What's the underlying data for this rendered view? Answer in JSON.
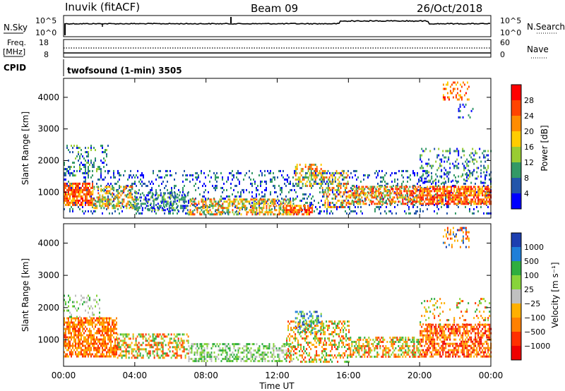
{
  "header": {
    "station": "Inuvik (fitACF)",
    "beam": "Beam 09",
    "date": "26/Oct/2018"
  },
  "top_panel": {
    "left_label": "N.Sky",
    "right_label": "N.Search",
    "left_ticks": [
      "10^5",
      "10^0"
    ],
    "right_ticks": [
      "10^5",
      "10^0"
    ]
  },
  "freq_panel": {
    "left_label_1": "Freq.",
    "left_label_2": "[MHz]",
    "right_label": "Nave",
    "left_ticks": [
      "18",
      "8"
    ],
    "right_ticks": [
      "60",
      "0"
    ],
    "cpid_label": "CPID",
    "cpid_text": "twofsound (1-min) 3505"
  },
  "chart_data": [
    {
      "type": "heatmap",
      "name": "power",
      "ylabel": "Slant Range [km]",
      "yticks": [
        1000,
        2000,
        3000,
        4000
      ],
      "ylim": [
        180,
        4600
      ],
      "xlim_hours": [
        0,
        24
      ],
      "colorbar_label": "Power [dB]",
      "colorbar_ticks": [
        "28",
        "24",
        "20",
        "16",
        "12",
        "8",
        "4"
      ],
      "colorbar_colors": [
        "#ff0000",
        "#ff4400",
        "#ff8c00",
        "#ffcc00",
        "#99cc33",
        "#339966",
        "#2255aa",
        "#0000ff"
      ]
    },
    {
      "type": "heatmap",
      "name": "velocity",
      "ylabel": "Slant Range [km]",
      "yticks": [
        1000,
        2000,
        3000,
        4000
      ],
      "ylim": [
        180,
        4600
      ],
      "xlim_hours": [
        0,
        24
      ],
      "colorbar_label": "Velocity [m s⁻¹]",
      "colorbar_ticks": [
        "1000",
        "500",
        "100",
        "25",
        "−25",
        "−100",
        "−500",
        "−1000"
      ],
      "colorbar_colors": [
        "#1d3fb0",
        "#1f7fd8",
        "#2fae3f",
        "#88d33a",
        "#c0c0c0",
        "#ffb000",
        "#ff8000",
        "#ff3000",
        "#ee0000"
      ]
    }
  ],
  "xaxis": {
    "ticks": [
      "00:00",
      "04:00",
      "08:00",
      "12:00",
      "16:00",
      "20:00",
      "00:00"
    ],
    "label": "Time UT"
  }
}
